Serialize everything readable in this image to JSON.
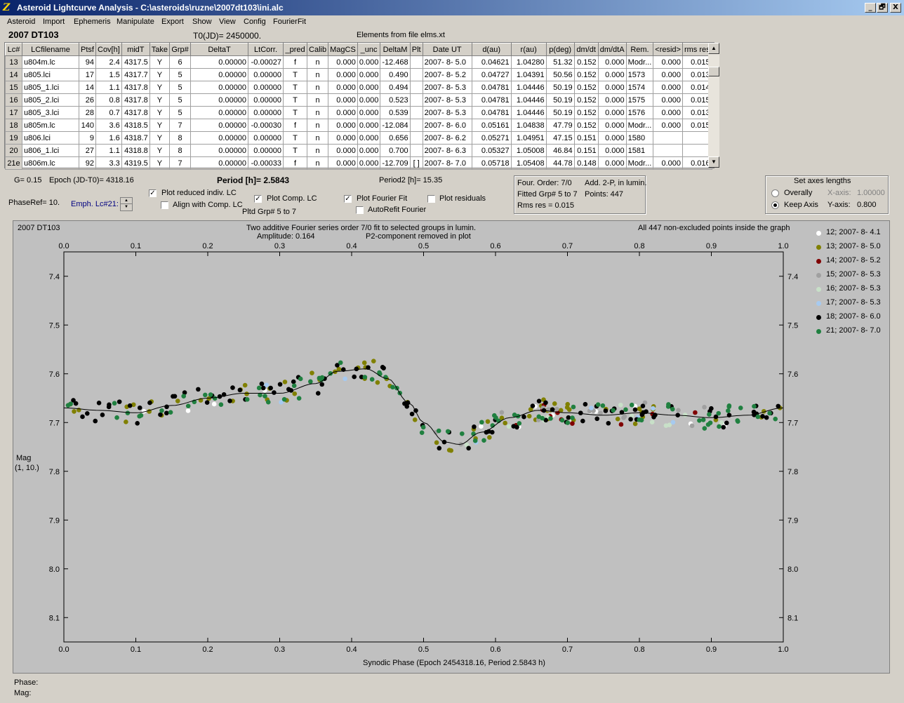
{
  "window": {
    "title": "Asteroid Lightcurve Analysis - C:\\asteroids\\ruzne\\2007dt103\\ini.alc",
    "buttons": {
      "minimize": "_",
      "restore": "🗗",
      "close": "X"
    }
  },
  "menu": [
    "Asteroid",
    "Import",
    "Ephemeris",
    "Manipulate",
    "Export",
    "Show",
    "View",
    "Config",
    "FourierFit"
  ],
  "header": {
    "asteroid_name": "2007 DT103",
    "t0": "T0(JD)= 2450000.",
    "elements": "Elements from file elms.xt"
  },
  "table": {
    "columns": [
      "Lc#",
      "LCfilename",
      "Ptsf",
      "Cov[h]",
      "midT",
      "Take",
      "Grp#",
      "DeltaT",
      "LtCorr.",
      "_pred",
      "Calib",
      "MagCS",
      "_unc",
      "DeltaM",
      "Plt",
      "Date UT",
      "d(au)",
      "r(au)",
      "p(deg)",
      "dm/dt",
      "dm/dtA",
      "Rem.",
      "<resid>",
      "rms res"
    ],
    "rows": [
      [
        "13",
        "u804m.lc",
        "94",
        "2.4",
        "4317.5",
        "Y",
        "6",
        "0.00000",
        "-0.00027",
        "f",
        "n",
        "0.000",
        "0.000",
        "-12.468",
        "",
        "2007- 8- 5.0",
        "0.04621",
        "1.04280",
        "51.32",
        "0.152",
        "0.000",
        "Modr...",
        "0.000",
        "0.015"
      ],
      [
        "14",
        "u805.lci",
        "17",
        "1.5",
        "4317.7",
        "Y",
        "5",
        "0.00000",
        "0.00000",
        "T",
        "n",
        "0.000",
        "0.000",
        "0.490",
        "",
        "2007- 8- 5.2",
        "0.04727",
        "1.04391",
        "50.56",
        "0.152",
        "0.000",
        "1573",
        "0.000",
        "0.013"
      ],
      [
        "15",
        "u805_1.lci",
        "14",
        "1.1",
        "4317.8",
        "Y",
        "5",
        "0.00000",
        "0.00000",
        "T",
        "n",
        "0.000",
        "0.000",
        "0.494",
        "",
        "2007- 8- 5.3",
        "0.04781",
        "1.04446",
        "50.19",
        "0.152",
        "0.000",
        "1574",
        "0.000",
        "0.014"
      ],
      [
        "16",
        "u805_2.lci",
        "26",
        "0.8",
        "4317.8",
        "Y",
        "5",
        "0.00000",
        "0.00000",
        "T",
        "n",
        "0.000",
        "0.000",
        "0.523",
        "",
        "2007- 8- 5.3",
        "0.04781",
        "1.04446",
        "50.19",
        "0.152",
        "0.000",
        "1575",
        "0.000",
        "0.015"
      ],
      [
        "17",
        "u805_3.lci",
        "28",
        "0.7",
        "4317.8",
        "Y",
        "5",
        "0.00000",
        "0.00000",
        "T",
        "n",
        "0.000",
        "0.000",
        "0.539",
        "",
        "2007- 8- 5.3",
        "0.04781",
        "1.04446",
        "50.19",
        "0.152",
        "0.000",
        "1576",
        "0.000",
        "0.013"
      ],
      [
        "18",
        "u805m.lc",
        "140",
        "3.6",
        "4318.5",
        "Y",
        "7",
        "0.00000",
        "-0.00030",
        "f",
        "n",
        "0.000",
        "0.000",
        "-12.084",
        "",
        "2007- 8- 6.0",
        "0.05161",
        "1.04838",
        "47.79",
        "0.152",
        "0.000",
        "Modr...",
        "0.000",
        "0.015"
      ],
      [
        "19",
        "u806.lci",
        "9",
        "1.6",
        "4318.7",
        "Y",
        "8",
        "0.00000",
        "0.00000",
        "T",
        "n",
        "0.000",
        "0.000",
        "0.656",
        "",
        "2007- 8- 6.2",
        "0.05271",
        "1.04951",
        "47.15",
        "0.151",
        "0.000",
        "1580",
        "",
        ""
      ],
      [
        "20",
        "u806_1.lci",
        "27",
        "1.1",
        "4318.8",
        "Y",
        "8",
        "0.00000",
        "0.00000",
        "T",
        "n",
        "0.000",
        "0.000",
        "0.700",
        "",
        "2007- 8- 6.3",
        "0.05327",
        "1.05008",
        "46.84",
        "0.151",
        "0.000",
        "1581",
        "",
        ""
      ],
      [
        "21e",
        "u806m.lc",
        "92",
        "3.3",
        "4319.5",
        "Y",
        "7",
        "0.00000",
        "-0.00033",
        "f",
        "n",
        "0.000",
        "0.000",
        "-12.709",
        "[ ]",
        "2007- 8- 7.0",
        "0.05718",
        "1.05408",
        "44.78",
        "0.148",
        "0.000",
        "Modr...",
        "0.000",
        "0.016"
      ]
    ]
  },
  "controls": {
    "g": "G= 0.15",
    "epoch": "Epoch (JD-T0)= 4318.16",
    "period": "Period [h]= 2.5843",
    "period2": "Period2 [h]= 15.35",
    "phaseref": "PhaseRef= 10.",
    "emph": "Emph. Lc#21:",
    "plot_reduced": "Plot reduced indiv. LC",
    "align_comp": "Align with Comp. LC",
    "plot_comp": "Plot Comp. LC",
    "pltd_grp": "Pltd Grp#  5   to   7",
    "plot_fourier": "Plot Fourier Fit",
    "autorefit": "AutoRefit Fourier",
    "plot_residuals": "Plot residuals",
    "check_mark": "✓"
  },
  "fourier_info": {
    "order": "Four. Order:  7/0",
    "add": "Add. 2-P, in lumin.",
    "fitted": "Fitted Grp# 5 to 7",
    "points": "Points: 447",
    "rms": "Rms res     = 0.015"
  },
  "axes_box": {
    "title": "Set axes lengths",
    "overally": "Overally",
    "keep_axis": "Keep Axis",
    "x_label": "X-axis:",
    "x_value": "1.00000",
    "y_label": "Y-axis:",
    "y_value": "0.800"
  },
  "plot": {
    "corner_title": "2007 DT103",
    "title_line1": "Two additive Fourier series order 7/0 fit to selected groups in lumin.",
    "amplitude": "Amplitude: 0.164",
    "p2_removed": "P2-component removed in plot",
    "all_points": "All 447 non-excluded points inside the graph",
    "ylabel_1": "Mag",
    "ylabel_2": "(1, 10.)",
    "xlabel": "Synodic Phase (Epoch 2454318.16, Period 2.5843 h)"
  },
  "chart_data": {
    "type": "scatter",
    "xlabel": "Synodic Phase (Epoch 2454318.16, Period 2.5843 h)",
    "ylabel": "Mag (1, 10.)",
    "xlim": [
      0.0,
      1.0
    ],
    "ylim": [
      7.35,
      8.15
    ],
    "y_inverted": true,
    "x_ticks": [
      "0.0",
      "0.1",
      "0.2",
      "0.3",
      "0.4",
      "0.5",
      "0.6",
      "0.7",
      "0.8",
      "0.9",
      "1.0"
    ],
    "y_ticks": [
      "7.4",
      "7.5",
      "7.6",
      "7.7",
      "7.8",
      "7.9",
      "8.0",
      "8.1"
    ],
    "legend_position": "right",
    "series": [
      {
        "name": "12; 2007- 8- 4.1",
        "color": "#ffffff"
      },
      {
        "name": "13; 2007- 8- 5.0",
        "color": "#808000"
      },
      {
        "name": "14; 2007- 8- 5.2",
        "color": "#800000"
      },
      {
        "name": "15; 2007- 8- 5.3",
        "color": "#a0a0a0"
      },
      {
        "name": "16; 2007- 8- 5.3",
        "color": "#c8e0c8"
      },
      {
        "name": "17; 2007- 8- 5.3",
        "color": "#a6caf0"
      },
      {
        "name": "18; 2007- 8- 6.0",
        "color": "#000000"
      },
      {
        "name": "21; 2007- 8- 7.0",
        "color": "#208040"
      }
    ],
    "fit_curve": {
      "x": [
        0.0,
        0.05,
        0.1,
        0.15,
        0.2,
        0.25,
        0.3,
        0.35,
        0.38,
        0.42,
        0.45,
        0.48,
        0.5,
        0.53,
        0.55,
        0.58,
        0.62,
        0.66,
        0.7,
        0.75,
        0.8,
        0.85,
        0.9,
        0.95,
        1.0
      ],
      "y": [
        7.67,
        7.675,
        7.68,
        7.665,
        7.65,
        7.64,
        7.64,
        7.62,
        7.595,
        7.59,
        7.61,
        7.66,
        7.7,
        7.74,
        7.745,
        7.72,
        7.69,
        7.675,
        7.68,
        7.685,
        7.68,
        7.685,
        7.69,
        7.685,
        7.67
      ]
    }
  },
  "status": {
    "phase": "Phase:",
    "mag": "Mag:"
  }
}
